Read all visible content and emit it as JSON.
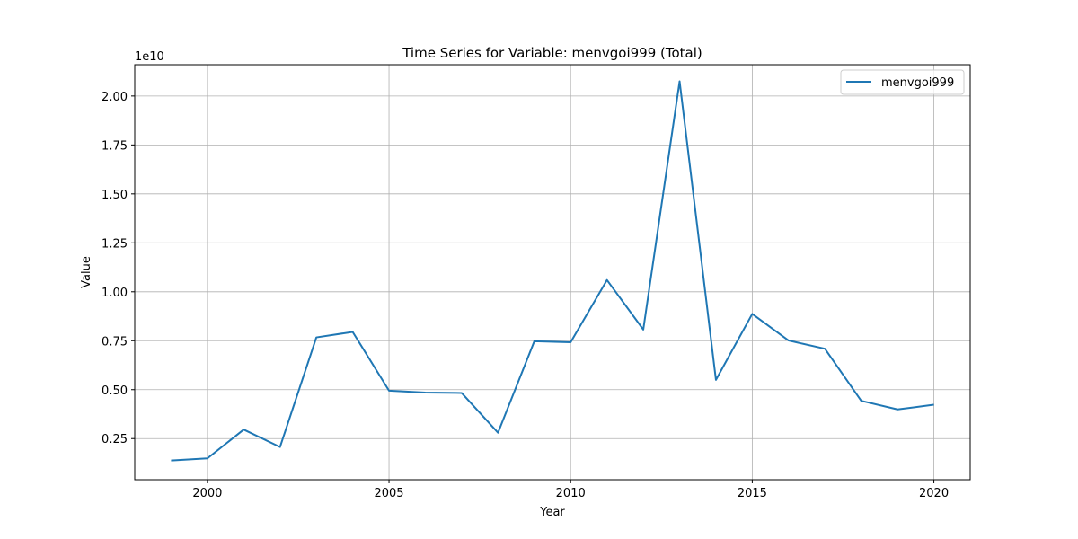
{
  "chart_data": {
    "type": "line",
    "title": "Time Series for Variable: menvgoi999 (Total)",
    "xlabel": "Year",
    "ylabel": "Value",
    "y_offset_label": "1e10",
    "y_scale": 10000000000,
    "xlim": [
      1998,
      2021
    ],
    "ylim": [
      0.04,
      2.16
    ],
    "x_ticks": [
      2000,
      2005,
      2010,
      2015,
      2020
    ],
    "x_tick_labels": [
      "2000",
      "2005",
      "2010",
      "2015",
      "2020"
    ],
    "y_ticks": [
      0.25,
      0.5,
      0.75,
      1.0,
      1.25,
      1.5,
      1.75,
      2.0
    ],
    "y_tick_labels": [
      "0.25",
      "0.50",
      "0.75",
      "1.00",
      "1.25",
      "1.50",
      "1.75",
      "2.00"
    ],
    "grid": true,
    "legend_position": "top-right",
    "series": [
      {
        "name": "menvgoi999",
        "color": "#1f77b4",
        "x": [
          1999,
          2000,
          2001,
          2002,
          2003,
          2004,
          2005,
          2006,
          2007,
          2008,
          2009,
          2010,
          2011,
          2012,
          2013,
          2014,
          2015,
          2016,
          2017,
          2018,
          2019,
          2020
        ],
        "values": [
          0.138,
          0.149,
          0.296,
          0.207,
          0.767,
          0.795,
          0.495,
          0.485,
          0.483,
          0.28,
          0.747,
          0.742,
          1.06,
          0.807,
          2.075,
          0.55,
          0.887,
          0.751,
          0.709,
          0.443,
          0.399,
          0.423
        ]
      }
    ]
  }
}
